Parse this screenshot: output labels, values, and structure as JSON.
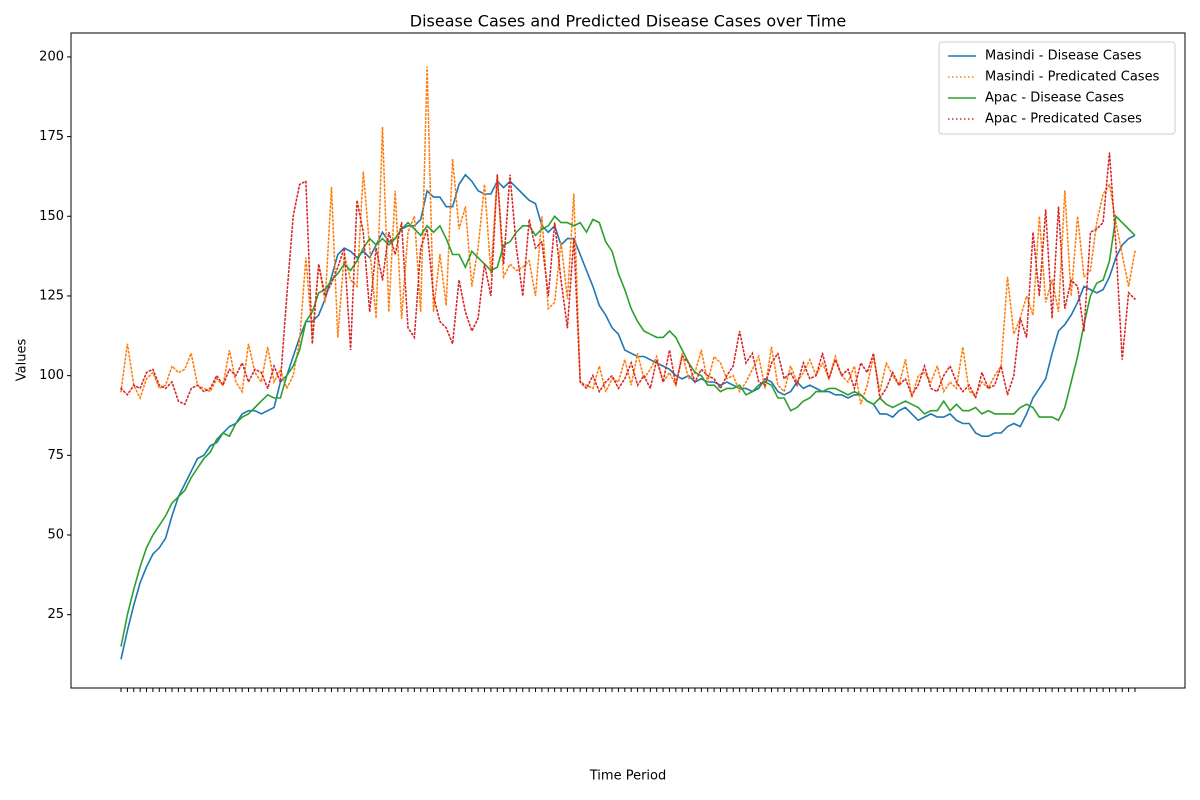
{
  "chart_data": {
    "type": "line",
    "title": "Disease Cases and Predicted Disease Cases over Time",
    "x_label": "Time Period",
    "y_label": "Values",
    "categories": [
      null,
      null,
      null,
      null,
      null,
      null,
      null,
      null,
      null,
      null,
      null,
      null,
      null,
      null,
      null,
      null,
      null,
      null,
      null,
      null,
      null,
      null,
      null,
      null,
      null,
      null,
      null,
      null,
      null,
      null,
      null,
      null,
      null,
      null,
      null,
      null,
      null,
      null,
      null,
      null,
      null,
      null,
      null,
      null,
      null,
      null,
      null,
      null,
      null,
      null,
      null,
      null,
      null,
      null,
      null,
      null,
      null,
      null,
      null,
      null,
      null,
      null,
      null,
      null,
      null,
      null,
      null,
      null,
      null,
      null,
      null,
      null,
      null,
      null,
      null,
      null,
      null,
      null,
      null,
      null,
      null,
      null,
      null,
      null,
      null,
      null,
      null,
      null,
      null,
      null,
      null,
      null,
      null,
      null,
      null,
      null,
      null,
      null,
      null,
      null,
      null,
      null,
      null,
      null,
      null,
      null,
      null,
      null,
      null,
      null,
      null,
      null,
      null,
      null,
      null,
      null,
      null,
      null,
      null,
      null,
      null,
      null,
      null,
      null,
      null,
      null,
      null,
      null,
      null,
      null,
      null,
      null,
      null,
      null,
      null,
      null,
      null,
      null,
      null,
      null,
      null,
      null,
      null,
      null,
      null,
      null,
      null,
      null,
      null,
      null,
      null,
      null,
      null,
      null,
      null,
      null,
      null,
      null,
      null,
      null
    ],
    "series": [
      {
        "name": "Masindi - Disease Cases",
        "color": "#1f77b4",
        "dash": "solid",
        "values": [
          11,
          20,
          28,
          35,
          40,
          44,
          46,
          49,
          56,
          62,
          66,
          70,
          74,
          75,
          78,
          79,
          82,
          84,
          85,
          88,
          89,
          89,
          88,
          89,
          90,
          98,
          100,
          106,
          112,
          117,
          117,
          119,
          124,
          131,
          138,
          140,
          139,
          137,
          139,
          137,
          141,
          145,
          142,
          143,
          146,
          147,
          147,
          149,
          158,
          156,
          156,
          153,
          153,
          160,
          163,
          161,
          158,
          157,
          157,
          161,
          159,
          161,
          159,
          157,
          155,
          154,
          147,
          145,
          147,
          141,
          143,
          143,
          138,
          133,
          128,
          122,
          119,
          115,
          113,
          108,
          107,
          106,
          106,
          105,
          104,
          103,
          102,
          100,
          99,
          100,
          98,
          99,
          98,
          98,
          97,
          98,
          97,
          96,
          96,
          95,
          96,
          99,
          98,
          95,
          94,
          95,
          98,
          96,
          97,
          96,
          95,
          95,
          94,
          94,
          93,
          94,
          94,
          92,
          91,
          88,
          88,
          87,
          89,
          90,
          88,
          86,
          87,
          88,
          87,
          87,
          88,
          86,
          85,
          85,
          82,
          81,
          81,
          82,
          82,
          84,
          85,
          84,
          88,
          93,
          96,
          99,
          107,
          114,
          116,
          119,
          123,
          128,
          127,
          126,
          127,
          131,
          137,
          141,
          143,
          144
        ]
      },
      {
        "name": "Masindi - Predicated Cases",
        "color": "#ff7f0e",
        "dash": "dotted",
        "values": [
          95,
          110,
          97,
          93,
          99,
          101,
          96,
          97,
          103,
          101,
          102,
          107,
          97,
          96,
          95,
          99,
          97,
          108,
          98,
          95,
          110,
          101,
          98,
          109,
          98,
          102,
          96,
          100,
          111,
          137,
          112,
          135,
          123,
          159,
          112,
          138,
          130,
          128,
          164,
          140,
          118,
          178,
          120,
          158,
          118,
          145,
          150,
          120,
          197,
          120,
          138,
          122,
          168,
          146,
          153,
          128,
          140,
          160,
          132,
          163,
          131,
          135,
          133,
          134,
          136,
          125,
          150,
          121,
          123,
          142,
          124,
          157,
          98,
          97,
          96,
          103,
          95,
          99,
          98,
          105,
          97,
          107,
          99,
          102,
          106,
          98,
          101,
          97,
          107,
          99,
          101,
          108,
          98,
          106,
          104,
          99,
          100,
          95,
          98,
          102,
          106,
          96,
          109,
          97,
          95,
          103,
          98,
          101,
          105,
          100,
          104,
          99,
          106,
          100,
          98,
          103,
          91,
          97,
          106,
          95,
          104,
          100,
          97,
          105,
          93,
          100,
          101,
          98,
          103,
          95,
          98,
          96,
          109,
          95,
          94,
          98,
          96,
          100,
          103,
          131,
          113,
          118,
          125,
          119,
          150,
          123,
          130,
          120,
          158,
          125,
          150,
          131,
          133,
          148,
          157,
          160,
          148,
          138,
          128,
          139
        ]
      },
      {
        "name": "Apac - Disease Cases",
        "color": "#2ca02c",
        "dash": "solid",
        "values": [
          15,
          25,
          33,
          40,
          46,
          50,
          53,
          56,
          60,
          62,
          64,
          68,
          71,
          74,
          76,
          80,
          82,
          81,
          85,
          87,
          88,
          90,
          92,
          94,
          93,
          93,
          100,
          103,
          108,
          117,
          120,
          126,
          127,
          130,
          132,
          135,
          133,
          136,
          140,
          143,
          141,
          143,
          141,
          143,
          146,
          148,
          146,
          144,
          147,
          145,
          147,
          143,
          138,
          138,
          134,
          139,
          137,
          135,
          133,
          134,
          141,
          142,
          145,
          147,
          147,
          144,
          146,
          147,
          150,
          148,
          148,
          147,
          148,
          145,
          149,
          148,
          142,
          139,
          132,
          127,
          121,
          117,
          114,
          113,
          112,
          112,
          114,
          112,
          108,
          104,
          101,
          100,
          97,
          97,
          95,
          96,
          96,
          97,
          94,
          95,
          97,
          98,
          97,
          93,
          93,
          89,
          90,
          92,
          93,
          95,
          95,
          96,
          96,
          95,
          94,
          95,
          94,
          92,
          91,
          93,
          91,
          90,
          91,
          92,
          91,
          90,
          88,
          89,
          89,
          92,
          89,
          91,
          89,
          89,
          90,
          88,
          89,
          88,
          88,
          88,
          88,
          90,
          91,
          90,
          87,
          87,
          87,
          86,
          90,
          98,
          106,
          116,
          125,
          129,
          130,
          136,
          150,
          148,
          146,
          144
        ]
      },
      {
        "name": "Apac - Predicated Cases",
        "color": "#d62728",
        "dash": "dotted",
        "values": [
          96,
          94,
          97,
          96,
          101,
          102,
          97,
          96,
          98,
          92,
          91,
          96,
          97,
          95,
          96,
          100,
          97,
          102,
          100,
          104,
          98,
          102,
          101,
          96,
          103,
          98,
          125,
          150,
          160,
          161,
          110,
          135,
          125,
          129,
          134,
          140,
          108,
          155,
          145,
          120,
          140,
          130,
          145,
          138,
          148,
          115,
          112,
          140,
          146,
          125,
          117,
          115,
          110,
          130,
          120,
          114,
          118,
          135,
          125,
          163,
          135,
          163,
          140,
          125,
          149,
          140,
          142,
          125,
          148,
          130,
          115,
          143,
          98,
          96,
          100,
          95,
          98,
          100,
          96,
          99,
          104,
          97,
          100,
          96,
          105,
          98,
          108,
          97,
          106,
          104,
          98,
          102,
          100,
          99,
          96,
          100,
          103,
          114,
          104,
          107,
          98,
          97,
          104,
          107,
          99,
          101,
          97,
          104,
          99,
          100,
          107,
          99,
          105,
          100,
          102,
          96,
          104,
          101,
          107,
          93,
          96,
          101,
          97,
          99,
          94,
          97,
          103,
          96,
          95,
          100,
          103,
          98,
          95,
          97,
          93,
          101,
          96,
          97,
          103,
          94,
          100,
          118,
          112,
          145,
          125,
          152,
          118,
          153,
          121,
          130,
          128,
          114,
          145,
          146,
          148,
          170,
          141,
          105,
          126,
          124
        ]
      }
    ],
    "ylim": [
      2,
      207.5
    ],
    "yticks": [
      25,
      50,
      75,
      100,
      125,
      150,
      175,
      200
    ],
    "legend": "upper right",
    "grid": false
  }
}
